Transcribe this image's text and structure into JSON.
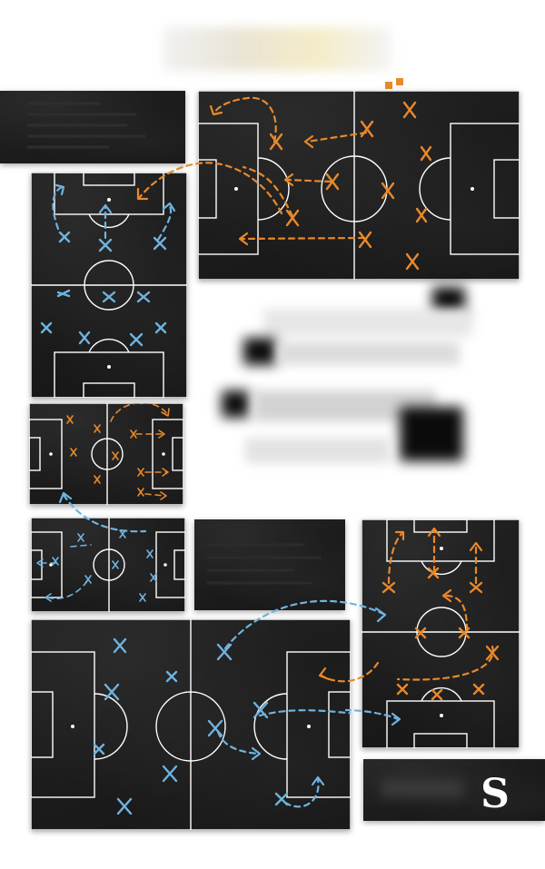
{
  "brand": {
    "logo_letter": "S"
  },
  "colors": {
    "orange": "#e8892b",
    "blue": "#6fb3e0",
    "board": "#1c1c1c",
    "lines": "#ffffff"
  },
  "icons": [
    "football-pitch-icon",
    "player-x-icon",
    "dashed-arrow-icon",
    "logo-s-icon"
  ]
}
